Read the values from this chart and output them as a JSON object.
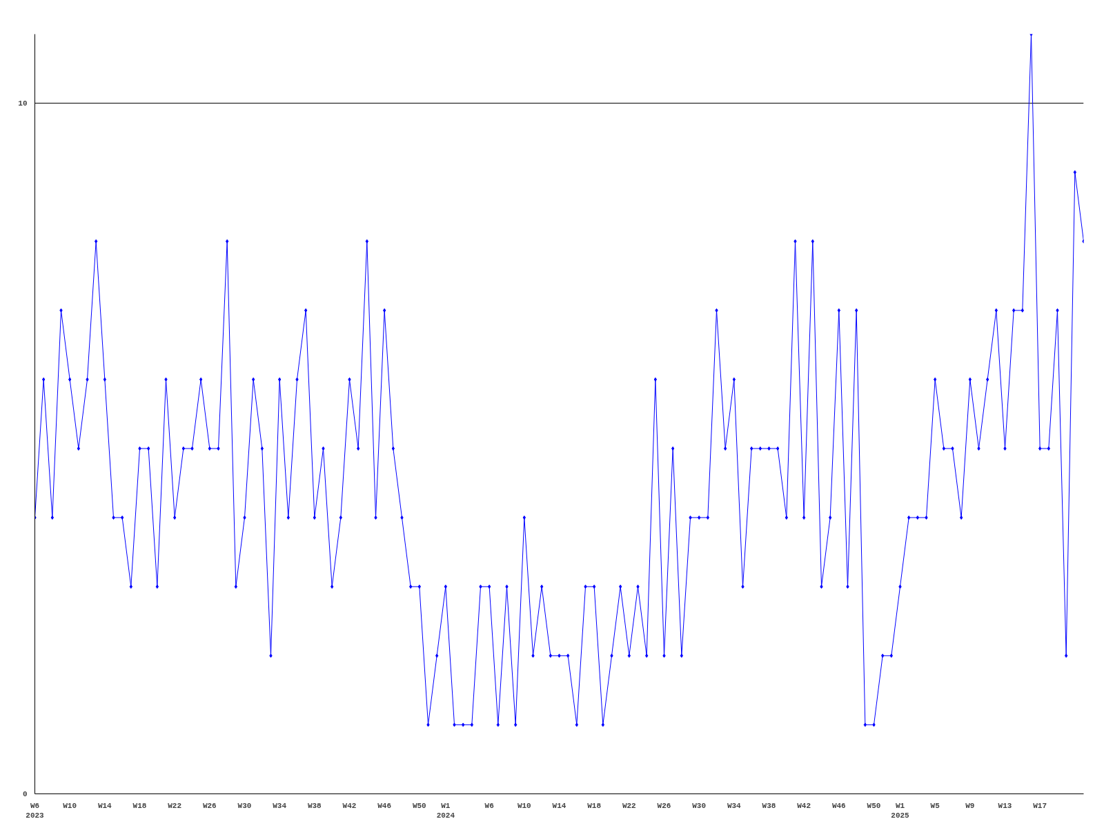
{
  "chart_data": {
    "type": "line",
    "categories": [
      "W6\n2023",
      null,
      null,
      null,
      "W10",
      null,
      null,
      null,
      "W14",
      null,
      null,
      null,
      "W18",
      null,
      null,
      null,
      "W22",
      null,
      null,
      null,
      "W26",
      null,
      null,
      null,
      "W30",
      null,
      null,
      null,
      "W34",
      null,
      null,
      null,
      "W38",
      null,
      null,
      null,
      "W42",
      null,
      null,
      null,
      "W46",
      null,
      null,
      null,
      "W50",
      null,
      null,
      "W1\n2024",
      null,
      null,
      null,
      null,
      "W6",
      null,
      null,
      null,
      "W10",
      null,
      null,
      null,
      "W14",
      null,
      null,
      null,
      "W18",
      null,
      null,
      null,
      "W22",
      null,
      null,
      null,
      "W26",
      null,
      null,
      null,
      "W30",
      null,
      null,
      null,
      "W34",
      null,
      null,
      null,
      "W38",
      null,
      null,
      null,
      "W42",
      null,
      null,
      null,
      "W46",
      null,
      null,
      null,
      "W50",
      null,
      null,
      "W1\n2025",
      null,
      null,
      null,
      "W5",
      null,
      null,
      null,
      "W9",
      null,
      null,
      null,
      "W13",
      null,
      null,
      null,
      "W17",
      null,
      null,
      null,
      null,
      null
    ],
    "series": [
      {
        "color": "#0000ff",
        "values": [
          4,
          6,
          4,
          7,
          6,
          5,
          6,
          8,
          6,
          4,
          4,
          3,
          5,
          5,
          3,
          6,
          4,
          5,
          5,
          6,
          5,
          5,
          8,
          3,
          4,
          6,
          5,
          2,
          6,
          4,
          6,
          7,
          4,
          5,
          3,
          4,
          6,
          5,
          8,
          4,
          7,
          5,
          4,
          3,
          3,
          1,
          2,
          3,
          1,
          1,
          1,
          3,
          3,
          1,
          3,
          1,
          4,
          2,
          3,
          2,
          2,
          2,
          1,
          3,
          3,
          1,
          2,
          3,
          2,
          3,
          2,
          6,
          2,
          5,
          2,
          4,
          4,
          4,
          7,
          5,
          6,
          3,
          5,
          5,
          5,
          5,
          4,
          8,
          4,
          8,
          3,
          4,
          7,
          3,
          7,
          1,
          1,
          2,
          2,
          3,
          4,
          4,
          4,
          6,
          5,
          5,
          4,
          6,
          5,
          6,
          7,
          5,
          7,
          7,
          11,
          5,
          5,
          7,
          2,
          9,
          8
        ]
      }
    ],
    "ylim": [
      0,
      11
    ],
    "yticks": [
      0,
      10
    ],
    "grid": "y",
    "marker": "diamond",
    "line_style": "solid"
  }
}
